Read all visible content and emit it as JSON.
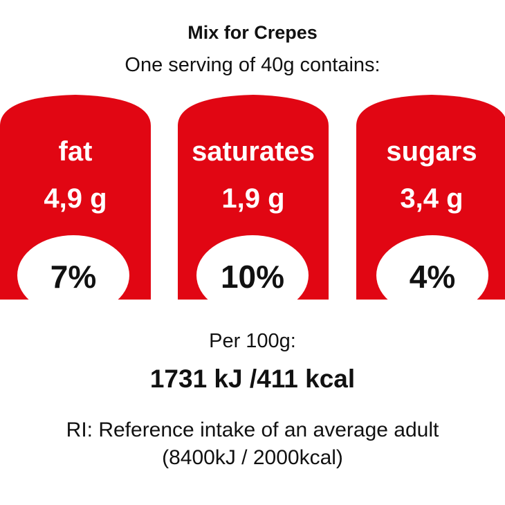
{
  "title": "Mix for Crepes",
  "subtitle": "One serving of 40g contains:",
  "colors": {
    "panel": "#e10613",
    "ellipse": "#ffffff"
  },
  "nutrients": [
    {
      "name": "fat",
      "amount": "4,9 g",
      "ri_percent": "7%"
    },
    {
      "name": "saturates",
      "amount": "1,9 g",
      "ri_percent": "10%"
    },
    {
      "name": "sugars",
      "amount": "3,4 g",
      "ri_percent": "4%"
    }
  ],
  "per_label": "Per 100g:",
  "energy": "1731 kJ /411 kcal",
  "ri_note": "RI: Reference intake of an average adult",
  "ri_values": "(8400kJ / 2000kcal)"
}
